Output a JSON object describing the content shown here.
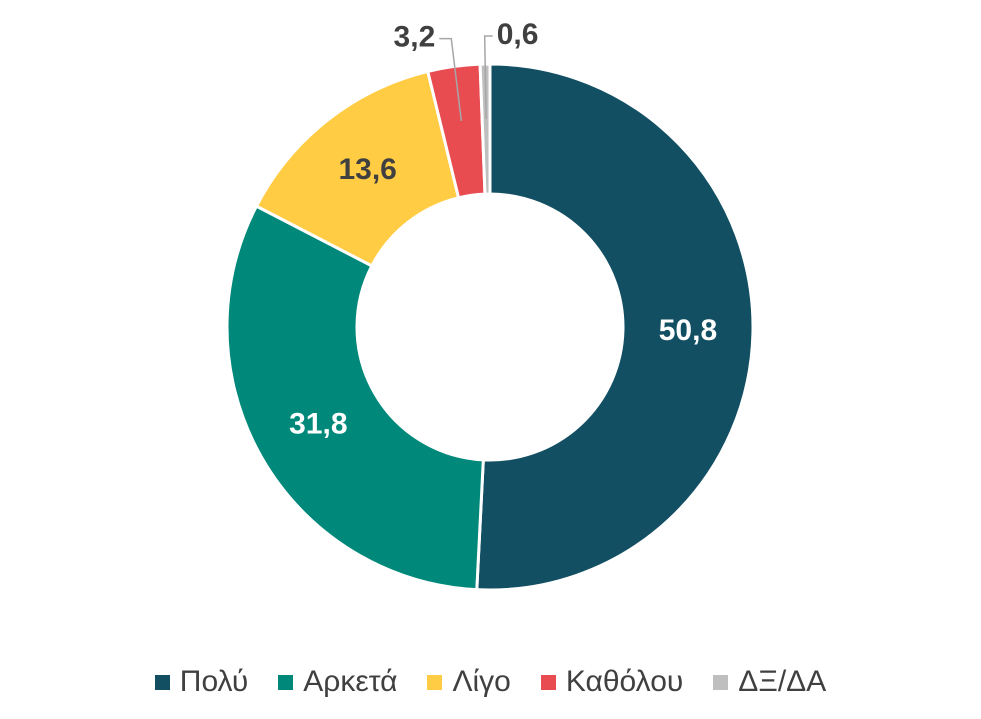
{
  "chart_data": {
    "type": "pie",
    "variant": "donut",
    "title": "",
    "categories": [
      "Πολύ",
      "Αρκετά",
      "Λίγο",
      "Καθόλου",
      "ΔΞ/ΔΑ"
    ],
    "values": [
      50.8,
      31.8,
      13.6,
      3.2,
      0.6
    ],
    "data_labels": [
      "50,8",
      "31,8",
      "13,6",
      "3,2",
      "0,6"
    ],
    "colors": [
      "#124F63",
      "#00897A",
      "#FFCC44",
      "#E84C50",
      "#BFBFBF"
    ],
    "label_colors": [
      "#ffffff",
      "#ffffff",
      "#404040",
      "#404040",
      "#404040"
    ],
    "legend_position": "bottom",
    "start_angle": "top",
    "direction": "clockwise"
  }
}
